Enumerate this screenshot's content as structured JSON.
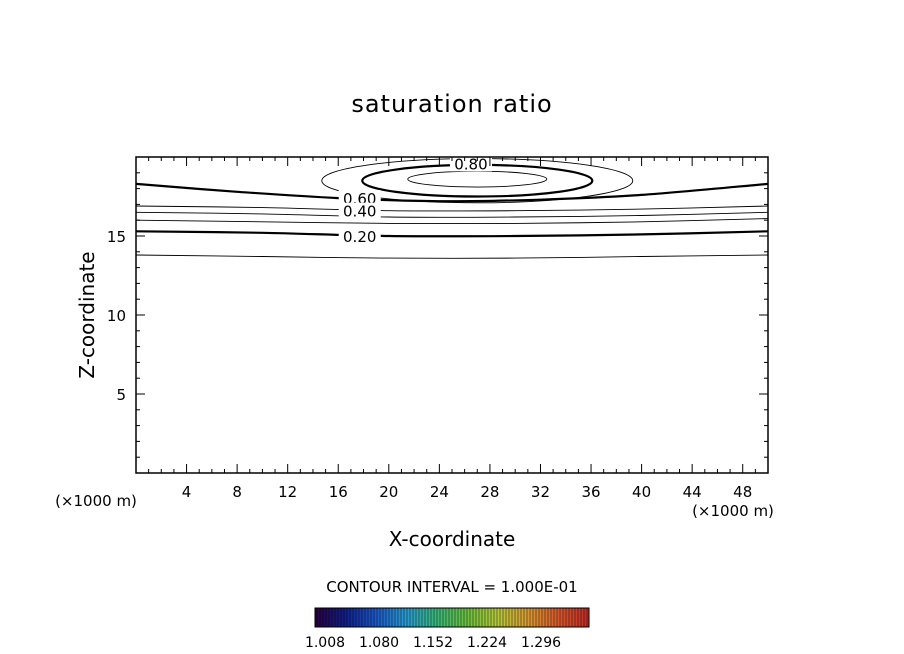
{
  "chart_data": {
    "type": "contour",
    "title": "saturation ratio",
    "xlabel": "X-coordinate",
    "ylabel": "Z-coordinate",
    "x_unit": "(×1000 m)",
    "z_unit": "(×1000 m)",
    "xlim": [
      0,
      50
    ],
    "ylim": [
      0,
      20
    ],
    "xticks": [
      "4",
      "8",
      "12",
      "16",
      "20",
      "24",
      "28",
      "32",
      "36",
      "40",
      "44",
      "48"
    ],
    "yticks": [
      "5",
      "10",
      "15"
    ],
    "contour_interval_text": "CONTOUR INTERVAL = 1.000E-01",
    "labels": [
      "0.80",
      "0.60",
      "0.40",
      "0.20"
    ],
    "label_values": [
      0.8,
      0.6,
      0.4,
      0.2
    ],
    "contours": [
      {
        "level": 0.1,
        "bold": false,
        "points": [
          [
            0,
            13.8
          ],
          [
            10,
            13.7
          ],
          [
            20,
            13.6
          ],
          [
            30,
            13.6
          ],
          [
            40,
            13.7
          ],
          [
            50,
            13.8
          ]
        ]
      },
      {
        "level": 0.2,
        "bold": true,
        "points": [
          [
            0,
            15.3
          ],
          [
            10,
            15.2
          ],
          [
            20,
            15.0
          ],
          [
            30,
            15.0
          ],
          [
            40,
            15.1
          ],
          [
            50,
            15.3
          ]
        ]
      },
      {
        "level": 0.3,
        "bold": false,
        "points": [
          [
            0,
            16.0
          ],
          [
            10,
            15.9
          ],
          [
            20,
            15.8
          ],
          [
            30,
            15.8
          ],
          [
            40,
            15.9
          ],
          [
            50,
            16.1
          ]
        ]
      },
      {
        "level": 0.4,
        "bold": false,
        "points": [
          [
            0,
            16.5
          ],
          [
            10,
            16.4
          ],
          [
            20,
            16.2
          ],
          [
            30,
            16.2
          ],
          [
            40,
            16.3
          ],
          [
            50,
            16.5
          ]
        ]
      },
      {
        "level": 0.5,
        "bold": false,
        "points": [
          [
            0,
            16.9
          ],
          [
            10,
            16.8
          ],
          [
            20,
            16.6
          ],
          [
            30,
            16.6
          ],
          [
            40,
            16.7
          ],
          [
            50,
            16.9
          ]
        ]
      },
      {
        "level": 0.6,
        "bold": true,
        "points": [
          [
            0,
            18.3
          ],
          [
            8,
            17.8
          ],
          [
            16,
            17.4
          ],
          [
            24,
            17.2
          ],
          [
            32,
            17.3
          ],
          [
            40,
            17.6
          ],
          [
            50,
            18.3
          ]
        ]
      }
    ],
    "closed_contours": [
      {
        "level": 0.7,
        "bold": false,
        "cx": 27,
        "cz": 18.5,
        "rx": 12.3,
        "rz": 1.4
      },
      {
        "level": 0.8,
        "bold": true,
        "cx": 27,
        "cz": 18.5,
        "rx": 9.1,
        "rz": 1.0
      },
      {
        "level": 0.9,
        "bold": false,
        "cx": 27,
        "cz": 18.6,
        "rx": 5.5,
        "rz": 0.5
      }
    ],
    "colorbar": {
      "tick_labels": [
        "1.008",
        "1.080",
        "1.152",
        "1.224",
        "1.296"
      ],
      "colors": [
        "#2a0040",
        "#10208a",
        "#1c58c8",
        "#2a9bd0",
        "#39b779",
        "#6cc13f",
        "#b8c93a",
        "#d99a33",
        "#d8582b",
        "#c02a25"
      ]
    }
  }
}
